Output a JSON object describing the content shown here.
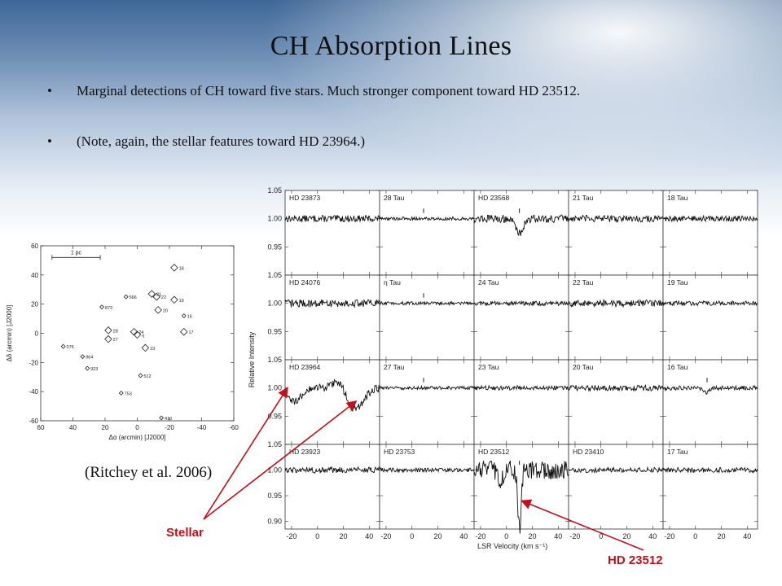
{
  "slide": {
    "title": "CH Absorption Lines",
    "bullets": [
      "Marginal detections of CH toward five stars. Much stronger component toward HD 23512.",
      "(Note, again, the stellar features toward HD 23964.)"
    ],
    "bullet_symbol": "•",
    "citation": "(Ritchey et al. 2006)",
    "annotations": {
      "stellar": "Stellar",
      "hd23512": "HD 23512"
    },
    "colors": {
      "annotation": "#c0101a",
      "title_bg_top": "#3f6797"
    }
  },
  "chart_data": [
    {
      "type": "scatter",
      "title": "",
      "xlabel": "Δα (arcmin) [J2000]",
      "ylabel": "Δδ (arcmin) [J2000]",
      "xlim": [
        60,
        -60
      ],
      "ylim": [
        -60,
        60
      ],
      "xticks": [
        60,
        40,
        20,
        0,
        -20,
        -40,
        -60
      ],
      "yticks": [
        60,
        40,
        20,
        0,
        -20,
        -40,
        -60
      ],
      "scale_bar_label": "1 pc",
      "points": [
        {
          "label": "18",
          "x": -23,
          "y": 45,
          "big": true
        },
        {
          "label": "21",
          "x": -9,
          "y": 27,
          "big": true
        },
        {
          "label": "566",
          "x": 7,
          "y": 25,
          "big": false
        },
        {
          "label": "22",
          "x": -12,
          "y": 25,
          "big": true
        },
        {
          "label": "19",
          "x": -23,
          "y": 23,
          "big": true
        },
        {
          "label": "873",
          "x": 22,
          "y": 18,
          "big": false
        },
        {
          "label": "20",
          "x": -13,
          "y": 16,
          "big": true
        },
        {
          "label": "16",
          "x": -29,
          "y": 12,
          "big": false
        },
        {
          "label": "28",
          "x": 18,
          "y": 2,
          "big": true
        },
        {
          "label": "24",
          "x": 2,
          "y": 1,
          "big": true
        },
        {
          "label": "η",
          "x": 0,
          "y": -1,
          "big": true
        },
        {
          "label": "17",
          "x": -29,
          "y": 1,
          "big": true
        },
        {
          "label": "27",
          "x": 18,
          "y": -4,
          "big": true
        },
        {
          "label": "076",
          "x": 46,
          "y": -9,
          "big": false
        },
        {
          "label": "23",
          "x": -5,
          "y": -10,
          "big": true
        },
        {
          "label": "964",
          "x": 34,
          "y": -16,
          "big": false
        },
        {
          "label": "923",
          "x": 31,
          "y": -24,
          "big": false
        },
        {
          "label": "512",
          "x": -2,
          "y": -29,
          "big": false
        },
        {
          "label": "753",
          "x": 10,
          "y": -41,
          "big": false
        },
        {
          "label": "410",
          "x": -15,
          "y": -58,
          "big": false
        }
      ]
    },
    {
      "type": "line",
      "title": "",
      "xlabel": "LSR Velocity (km s⁻¹)",
      "ylabel": "Relative Intensity",
      "xlim": [
        -25,
        48
      ],
      "xticks": [
        -20,
        0,
        20,
        40
      ],
      "row_ylim": [
        [
          0.9,
          1.05
        ],
        [
          0.9,
          1.05
        ],
        [
          0.9,
          1.05
        ],
        [
          0.885,
          1.05
        ]
      ],
      "row_yticks": [
        [
          "1.05",
          "1.00",
          "0.95"
        ],
        [
          "1.05",
          "1.00",
          "0.95"
        ],
        [
          "1.05",
          "1.00",
          "0.95"
        ],
        [
          "1.05",
          "1.00",
          "0.95",
          "0.90"
        ]
      ],
      "panels": [
        {
          "row": 0,
          "col": 0,
          "star": "HD 23873",
          "noise": 0.006,
          "marker": null,
          "features": []
        },
        {
          "row": 0,
          "col": 1,
          "star": "28 Tau",
          "noise": 0.003,
          "marker": 9,
          "features": []
        },
        {
          "row": 0,
          "col": 2,
          "star": "HD 23568",
          "noise": 0.007,
          "marker": 10,
          "features": [
            {
              "v": 10,
              "depth": 0.025,
              "w": 3
            }
          ]
        },
        {
          "row": 0,
          "col": 3,
          "star": "21 Tau",
          "noise": 0.006,
          "marker": null,
          "features": []
        },
        {
          "row": 0,
          "col": 4,
          "star": "18 Tau",
          "noise": 0.005,
          "marker": null,
          "features": []
        },
        {
          "row": 1,
          "col": 0,
          "star": "HD 24076",
          "noise": 0.007,
          "marker": null,
          "features": []
        },
        {
          "row": 1,
          "col": 1,
          "star": "η Tau",
          "noise": 0.003,
          "marker": 9,
          "features": []
        },
        {
          "row": 1,
          "col": 2,
          "star": "24 Tau",
          "noise": 0.004,
          "marker": null,
          "features": []
        },
        {
          "row": 1,
          "col": 3,
          "star": "22 Tau",
          "noise": 0.006,
          "marker": null,
          "features": []
        },
        {
          "row": 1,
          "col": 4,
          "star": "19 Tau",
          "noise": 0.004,
          "marker": null,
          "features": []
        },
        {
          "row": 2,
          "col": 0,
          "star": "HD 23964",
          "noise": 0.007,
          "marker": null,
          "features": [
            {
              "v": -18,
              "depth": 0.025,
              "w": 5
            },
            {
              "v": 28,
              "depth": 0.04,
              "w": 7
            },
            {
              "v": 18,
              "depth": -0.02,
              "w": 5
            }
          ]
        },
        {
          "row": 2,
          "col": 1,
          "star": "27 Tau",
          "noise": 0.003,
          "marker": 9,
          "features": []
        },
        {
          "row": 2,
          "col": 2,
          "star": "23 Tau",
          "noise": 0.004,
          "marker": null,
          "features": []
        },
        {
          "row": 2,
          "col": 3,
          "star": "20 Tau",
          "noise": 0.005,
          "marker": null,
          "features": []
        },
        {
          "row": 2,
          "col": 4,
          "star": "16 Tau",
          "noise": 0.004,
          "marker": 9,
          "features": [
            {
              "v": 9,
              "depth": 0.008,
              "w": 2
            }
          ]
        },
        {
          "row": 3,
          "col": 0,
          "star": "HD 23923",
          "noise": 0.006,
          "marker": null,
          "features": []
        },
        {
          "row": 3,
          "col": 1,
          "star": "HD 23753",
          "noise": 0.004,
          "marker": null,
          "features": []
        },
        {
          "row": 3,
          "col": 2,
          "star": "HD 23512",
          "noise": 0.018,
          "marker": [
            3,
            10
          ],
          "features": [
            {
              "v": 10,
              "depth": 0.115,
              "w": 1.3
            },
            {
              "v": -5,
              "depth": 0.02,
              "w": 2
            }
          ]
        },
        {
          "row": 3,
          "col": 3,
          "star": "HD 23410",
          "noise": 0.005,
          "marker": null,
          "features": []
        },
        {
          "row": 3,
          "col": 4,
          "star": "17 Tau",
          "noise": 0.005,
          "marker": null,
          "features": []
        }
      ]
    }
  ]
}
